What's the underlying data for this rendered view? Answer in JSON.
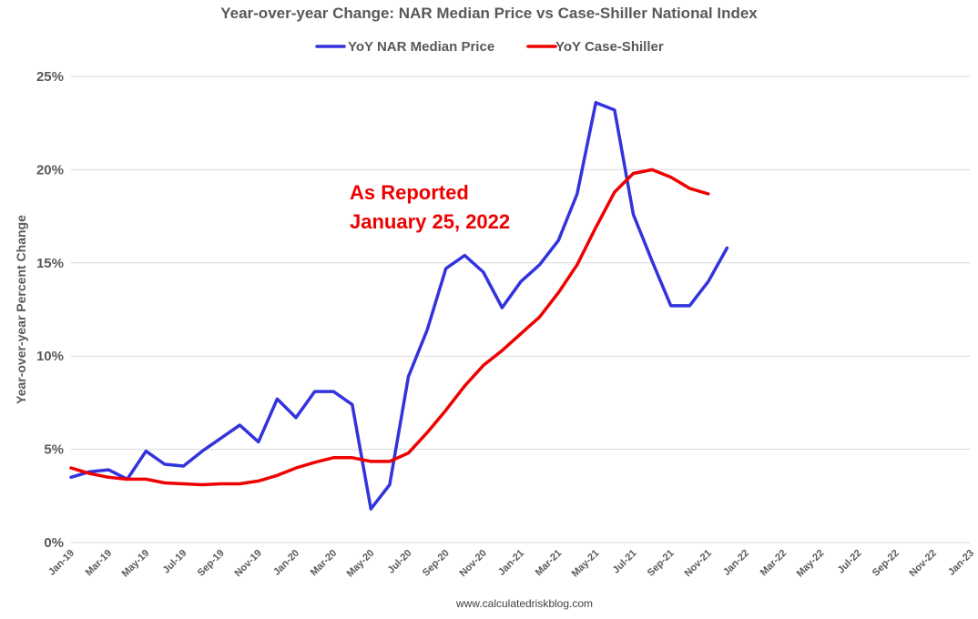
{
  "chart_data": {
    "type": "line",
    "title": "Year-over-year Change: NAR Median Price vs Case-Shiller National Index",
    "ylabel": "Year-over-year Percent Change",
    "source": "www.calculatedriskblog.com",
    "annotation": [
      "As Reported",
      "January 25, 2022"
    ],
    "legend_position": "top",
    "grid": true,
    "ylim": [
      0,
      25
    ],
    "y_ticks": [
      "0%",
      "5%",
      "10%",
      "15%",
      "20%",
      "25%"
    ],
    "y_tick_values": [
      0,
      5,
      10,
      15,
      20,
      25
    ],
    "x_tick_labels": [
      "Jan-19",
      "Mar-19",
      "May-19",
      "Jul-19",
      "Sep-19",
      "Nov-19",
      "Jan-20",
      "Mar-20",
      "May-20",
      "Jul-20",
      "Sep-20",
      "Nov-20",
      "Jan-21",
      "Mar-21",
      "May-21",
      "Jul-21",
      "Sep-21",
      "Nov-21",
      "Jan-22",
      "Mar-22",
      "May-22",
      "Jul-22",
      "Sep-22",
      "Nov-22",
      "Jan-23"
    ],
    "x_months": [
      "Jan-19",
      "Feb-19",
      "Mar-19",
      "Apr-19",
      "May-19",
      "Jun-19",
      "Jul-19",
      "Aug-19",
      "Sep-19",
      "Oct-19",
      "Nov-19",
      "Dec-19",
      "Jan-20",
      "Feb-20",
      "Mar-20",
      "Apr-20",
      "May-20",
      "Jun-20",
      "Jul-20",
      "Aug-20",
      "Sep-20",
      "Oct-20",
      "Nov-20",
      "Dec-20",
      "Jan-21",
      "Feb-21",
      "Mar-21",
      "Apr-21",
      "May-21",
      "Jun-21",
      "Jul-21",
      "Aug-21",
      "Sep-21",
      "Oct-21",
      "Nov-21",
      "Dec-21",
      "Jan-22",
      "Feb-22",
      "Mar-22",
      "Apr-22",
      "May-22",
      "Jun-22",
      "Jul-22",
      "Aug-22",
      "Sep-22",
      "Oct-22",
      "Nov-22",
      "Dec-22",
      "Jan-23"
    ],
    "series": [
      {
        "name": "YoY NAR Median Price",
        "color": "#3333dd",
        "values": [
          3.5,
          3.8,
          3.9,
          3.4,
          4.9,
          4.2,
          4.1,
          4.9,
          5.6,
          6.3,
          5.4,
          7.7,
          6.7,
          8.1,
          8.1,
          7.4,
          1.8,
          3.1,
          8.9,
          11.4,
          14.7,
          15.4,
          14.5,
          12.6,
          14.0,
          14.9,
          16.2,
          18.7,
          23.6,
          23.2,
          17.6,
          15.1,
          12.7,
          12.7,
          14.0,
          15.8
        ]
      },
      {
        "name": "YoY Case-Shiller",
        "color": "#ee0000",
        "values": [
          4.0,
          3.7,
          3.5,
          3.4,
          3.4,
          3.2,
          3.15,
          3.1,
          3.15,
          3.15,
          3.3,
          3.6,
          4.0,
          4.3,
          4.55,
          4.55,
          4.35,
          4.35,
          4.8,
          5.9,
          7.1,
          8.4,
          9.5,
          10.3,
          11.2,
          12.1,
          13.4,
          14.9,
          16.9,
          18.8,
          19.8,
          20.0,
          19.6,
          19.0,
          18.7
        ]
      }
    ]
  }
}
